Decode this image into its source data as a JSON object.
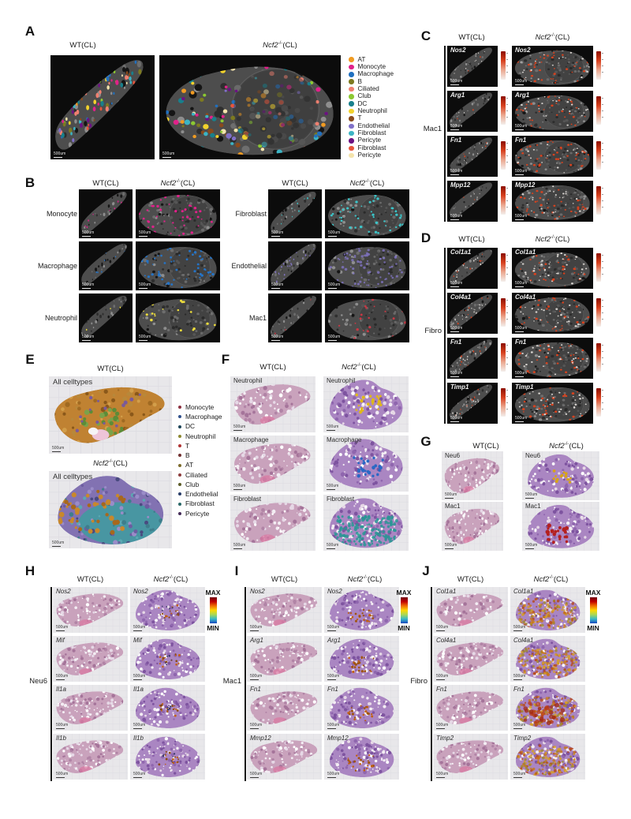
{
  "figure": {
    "headers": {
      "wt": "WT(CL)",
      "ko_gene": "Ncf2",
      "ko_sup": "-/-",
      "ko_rest": "(CL)"
    },
    "scalebar_label": "500um",
    "colorbar": {
      "max": "MAX",
      "min": "MIN"
    },
    "colors": {
      "heat_red": "#d8421e",
      "rainbow_top": "#70000f",
      "rainbow_bottom": "#1848c0"
    }
  },
  "panels": {
    "A": {
      "label": "A",
      "legend": [
        {
          "label": "AT",
          "color": "#f09b22"
        },
        {
          "label": "Monocyte",
          "color": "#e0218a"
        },
        {
          "label": "Macrophage",
          "color": "#2070c0"
        },
        {
          "label": "B",
          "color": "#7d7a20"
        },
        {
          "label": "Ciliated",
          "color": "#f08070"
        },
        {
          "label": "Club",
          "color": "#8cc832"
        },
        {
          "label": "DC",
          "color": "#18808c"
        },
        {
          "label": "Neutrophil",
          "color": "#f2d22c"
        },
        {
          "label": "T",
          "color": "#8a4a1c"
        },
        {
          "label": "Endothelial",
          "color": "#8070c8"
        },
        {
          "label": "Fibroblast",
          "color": "#3cb4c4"
        },
        {
          "label": "Pericyte",
          "color": "#6c1282"
        },
        {
          "label": "Fibroblast",
          "color": "#e8563c"
        },
        {
          "label": "Pericyte",
          "color": "#f4e4ac"
        }
      ]
    },
    "B": {
      "label": "B",
      "groups": [
        {
          "rows": [
            {
              "name": "Monocyte",
              "color": "#e0218a"
            },
            {
              "name": "Macrophage",
              "color": "#2474c8"
            },
            {
              "name": "Neutrophil",
              "color": "#ecdc3c"
            }
          ]
        },
        {
          "rows": [
            {
              "name": "Fibroblast",
              "color": "#3cc4c8"
            },
            {
              "name": "Endothelial",
              "color": "#8678cc"
            },
            {
              "name": "Mac1",
              "color": "#c83844"
            }
          ]
        }
      ]
    },
    "C": {
      "label": "C",
      "side": "Mac1",
      "rows": [
        "Nos2",
        "Arg1",
        "Fn1",
        "Mpp12"
      ]
    },
    "D": {
      "label": "D",
      "side": "Fibro",
      "rows": [
        "Col1a1",
        "Col4a1",
        "Fn1",
        "Timp1"
      ]
    },
    "E": {
      "label": "E",
      "image_label": "All celltypes",
      "legend": [
        {
          "label": "Monocyte",
          "color": "#8c3040"
        },
        {
          "label": "Macrophage",
          "color": "#30508c"
        },
        {
          "label": "DC",
          "color": "#1c4458"
        },
        {
          "label": "Neutrophil",
          "color": "#8c8830"
        },
        {
          "label": "T",
          "color": "#b03434"
        },
        {
          "label": "B",
          "color": "#703030"
        },
        {
          "label": "AT",
          "color": "#7c6c2c"
        },
        {
          "label": "Ciliated",
          "color": "#8c3c3c"
        },
        {
          "label": "Club",
          "color": "#5c5c28"
        },
        {
          "label": "Endothelial",
          "color": "#283c68"
        },
        {
          "label": "Fibroblast",
          "color": "#2a6868"
        },
        {
          "label": "Pericyte",
          "color": "#442c58"
        }
      ]
    },
    "F": {
      "label": "F",
      "rows": [
        {
          "name": "Neutrophil",
          "color": "#e0b818"
        },
        {
          "name": "Macrophage",
          "color": "#2a68c4"
        },
        {
          "name": "Fibroblast",
          "color": "#289694"
        }
      ]
    },
    "G": {
      "label": "G",
      "rows": [
        {
          "name": "Neu6",
          "color": "#d8a418"
        },
        {
          "name": "Mac1",
          "color": "#b42020"
        }
      ]
    },
    "H": {
      "label": "H",
      "side": "Neu6",
      "rows": [
        "Nos2",
        "Mif",
        "Il1a",
        "Il1b"
      ]
    },
    "I": {
      "label": "I",
      "side": "Mac1",
      "rows": [
        "Nos2",
        "Arg1",
        "Fn1",
        "Mmp12"
      ]
    },
    "J": {
      "label": "J",
      "side": "Fibro",
      "rows": [
        "Col1a1",
        "Col4a1",
        "Fn1",
        "Timp2"
      ]
    }
  }
}
